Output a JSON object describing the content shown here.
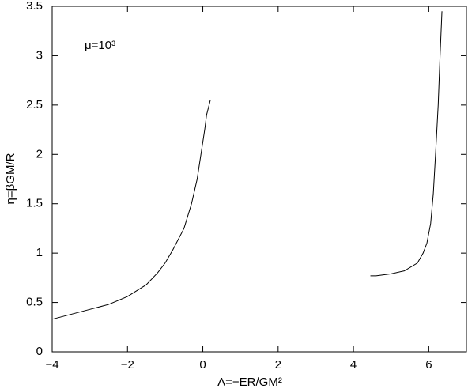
{
  "chart_data": {
    "type": "line",
    "xlabel": "Λ=−ER/GM²",
    "ylabel": "η=βGM/R",
    "annotation": "μ=10³",
    "xlim": [
      -4,
      7
    ],
    "ylim": [
      0,
      3.5
    ],
    "xticks": [
      {
        "value": -4,
        "label": "−4"
      },
      {
        "value": -2,
        "label": "−2"
      },
      0,
      2,
      4,
      6
    ],
    "yticks": [
      0,
      0.5,
      1,
      1.5,
      2,
      2.5,
      3,
      3.5
    ],
    "series": [
      {
        "color": "#000000",
        "x": [
          -4,
          -3.5,
          -3,
          -2.5,
          -2,
          -1.5,
          -1.2,
          -1,
          -0.8,
          -0.5,
          -0.3,
          -0.15,
          -0.05,
          0.05,
          0.1,
          0.2
        ],
        "values": [
          0.33,
          0.38,
          0.43,
          0.48,
          0.56,
          0.68,
          0.8,
          0.9,
          1.03,
          1.25,
          1.5,
          1.75,
          2.0,
          2.25,
          2.4,
          2.55
        ]
      },
      {
        "color": "#000000",
        "x": [
          4.45,
          4.6,
          5,
          5.35,
          5.7,
          5.85,
          5.95,
          6.05,
          6.12,
          6.18,
          6.25,
          6.3,
          6.35
        ],
        "values": [
          0.77,
          0.77,
          0.79,
          0.82,
          0.9,
          1.0,
          1.1,
          1.3,
          1.6,
          2.0,
          2.5,
          3.0,
          3.45
        ]
      }
    ]
  }
}
